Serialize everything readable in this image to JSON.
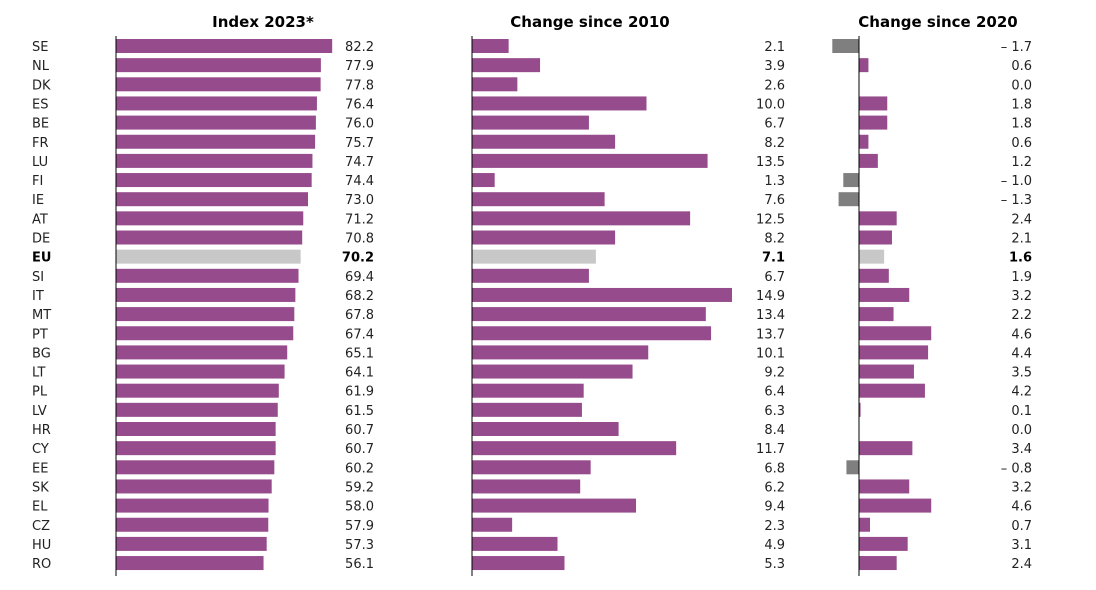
{
  "chart_data": {
    "type": "bar",
    "orientation": "horizontal",
    "categories": [
      "SE",
      "NL",
      "DK",
      "ES",
      "BE",
      "FR",
      "LU",
      "FI",
      "IE",
      "AT",
      "DE",
      "EU",
      "SI",
      "IT",
      "MT",
      "PT",
      "BG",
      "LT",
      "PL",
      "LV",
      "HR",
      "CY",
      "EE",
      "SK",
      "EL",
      "CZ",
      "HU",
      "RO"
    ],
    "highlight_category": "EU",
    "colors": {
      "bar": "#964B8C",
      "highlight": "#C8C8C8",
      "negative": "#7F7F7F",
      "axis": "#000000"
    },
    "panels": [
      {
        "title": "Index 2023*",
        "values": [
          82.2,
          77.9,
          77.8,
          76.4,
          76.0,
          75.7,
          74.7,
          74.4,
          73.0,
          71.2,
          70.8,
          70.2,
          69.4,
          68.2,
          67.8,
          67.4,
          65.1,
          64.1,
          61.9,
          61.5,
          60.7,
          60.7,
          60.2,
          59.2,
          58.0,
          57.9,
          57.3,
          56.1
        ],
        "labels": [
          "82.2",
          "77.9",
          "77.8",
          "76.4",
          "76.0",
          "75.7",
          "74.7",
          "74.4",
          "73.0",
          "71.2",
          "70.8",
          "70.2",
          "69.4",
          "68.2",
          "67.8",
          "67.4",
          "65.1",
          "64.1",
          "61.9",
          "61.5",
          "60.7",
          "60.7",
          "60.2",
          "59.2",
          "58.0",
          "57.9",
          "57.3",
          "56.1"
        ],
        "xlim": [
          0,
          82.2
        ]
      },
      {
        "title": "Change since 2010",
        "values": [
          2.1,
          3.9,
          2.6,
          10.0,
          6.7,
          8.2,
          13.5,
          1.3,
          7.6,
          12.5,
          8.2,
          7.1,
          6.7,
          14.9,
          13.4,
          13.7,
          10.1,
          9.2,
          6.4,
          6.3,
          8.4,
          11.7,
          6.8,
          6.2,
          9.4,
          2.3,
          4.9,
          5.3
        ],
        "labels": [
          "2.1",
          "3.9",
          "2.6",
          "10.0",
          "6.7",
          "8.2",
          "13.5",
          "1.3",
          "7.6",
          "12.5",
          "8.2",
          "7.1",
          "6.7",
          "14.9",
          "13.4",
          "13.7",
          "10.1",
          "9.2",
          "6.4",
          "6.3",
          "8.4",
          "11.7",
          "6.8",
          "6.2",
          "9.4",
          "2.3",
          "4.9",
          "5.3"
        ],
        "xlim": [
          0,
          14.9
        ]
      },
      {
        "title": "Change since 2020",
        "values": [
          -1.7,
          0.6,
          0.0,
          1.8,
          1.8,
          0.6,
          1.2,
          -1.0,
          -1.3,
          2.4,
          2.1,
          1.6,
          1.9,
          3.2,
          2.2,
          4.6,
          4.4,
          3.5,
          4.2,
          0.1,
          0.0,
          3.4,
          -0.8,
          3.2,
          4.6,
          0.7,
          3.1,
          2.4
        ],
        "labels": [
          "– 1.7",
          "0.6",
          "0.0",
          "1.8",
          "1.8",
          "0.6",
          "1.2",
          "– 1.0",
          "– 1.3",
          "2.4",
          "2.1",
          "1.6",
          "1.9",
          "3.2",
          "2.2",
          "4.6",
          "4.4",
          "3.5",
          "4.2",
          "0.1",
          "0.0",
          "3.4",
          "– 0.8",
          "3.2",
          "4.6",
          "0.7",
          "3.1",
          "2.4"
        ],
        "xlim": [
          -1.7,
          4.6
        ]
      }
    ]
  }
}
